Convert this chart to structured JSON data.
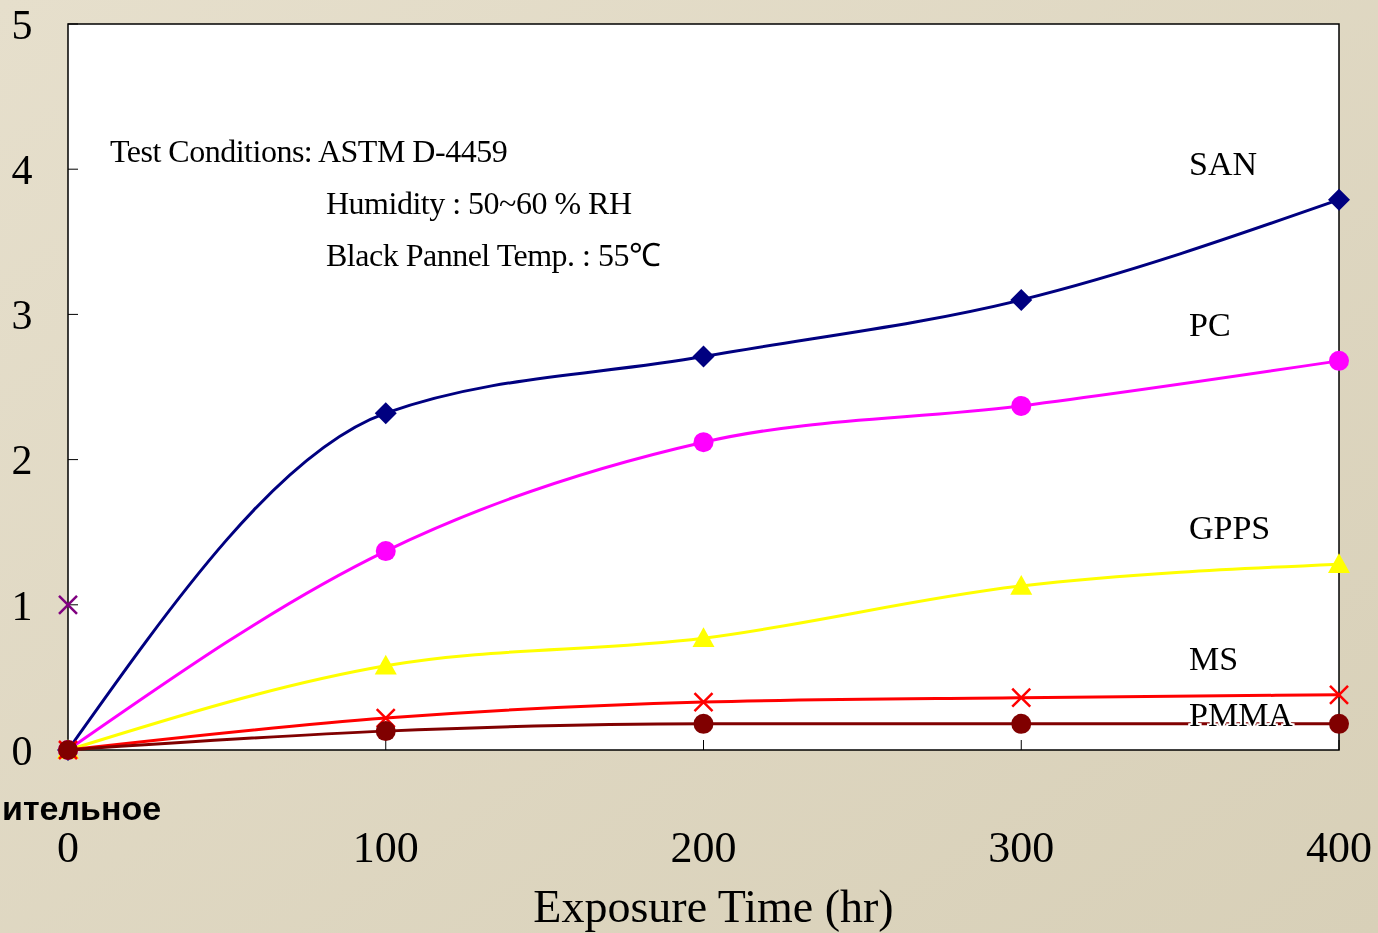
{
  "chart_data": {
    "type": "line",
    "xlabel": "Exposure  Time  (hr)",
    "x": [
      0,
      100,
      200,
      300,
      400
    ],
    "xlim": [
      0,
      400
    ],
    "xticks": [
      0,
      100,
      200,
      300,
      400
    ],
    "ylim": [
      0,
      5
    ],
    "yticks": [
      0,
      1,
      2,
      3,
      4,
      5
    ],
    "grid": false,
    "line_style": "solid",
    "series": [
      {
        "name": "SAN",
        "color": "#000080",
        "marker": "diamond",
        "values": [
          0,
          2.32,
          2.71,
          3.1,
          3.79
        ]
      },
      {
        "name": "PC",
        "color": "#ff00ff",
        "marker": "circle",
        "values": [
          0,
          1.37,
          2.12,
          2.37,
          2.68
        ]
      },
      {
        "name": "GPPS",
        "color": "#ffff00",
        "marker": "triangle",
        "values": [
          0,
          0.58,
          0.77,
          1.13,
          1.28
        ]
      },
      {
        "name": "MS",
        "color": "#ff0000",
        "marker": "cross",
        "values": [
          0,
          0.22,
          0.33,
          0.36,
          0.38
        ]
      },
      {
        "name": "PMMA",
        "color": "#800000",
        "marker": "circle",
        "values": [
          0,
          0.13,
          0.18,
          0.18,
          0.18
        ]
      },
      {
        "type": "scatter",
        "color": "#800080",
        "marker": "cross",
        "x": [
          0
        ],
        "values": [
          1
        ]
      }
    ],
    "annotations": [
      "Test Conditions:  ASTM D-4459",
      "Humidity : 50~60 % RH",
      "Black Pannel Temp. : 55℃",
      "ительное"
    ]
  }
}
